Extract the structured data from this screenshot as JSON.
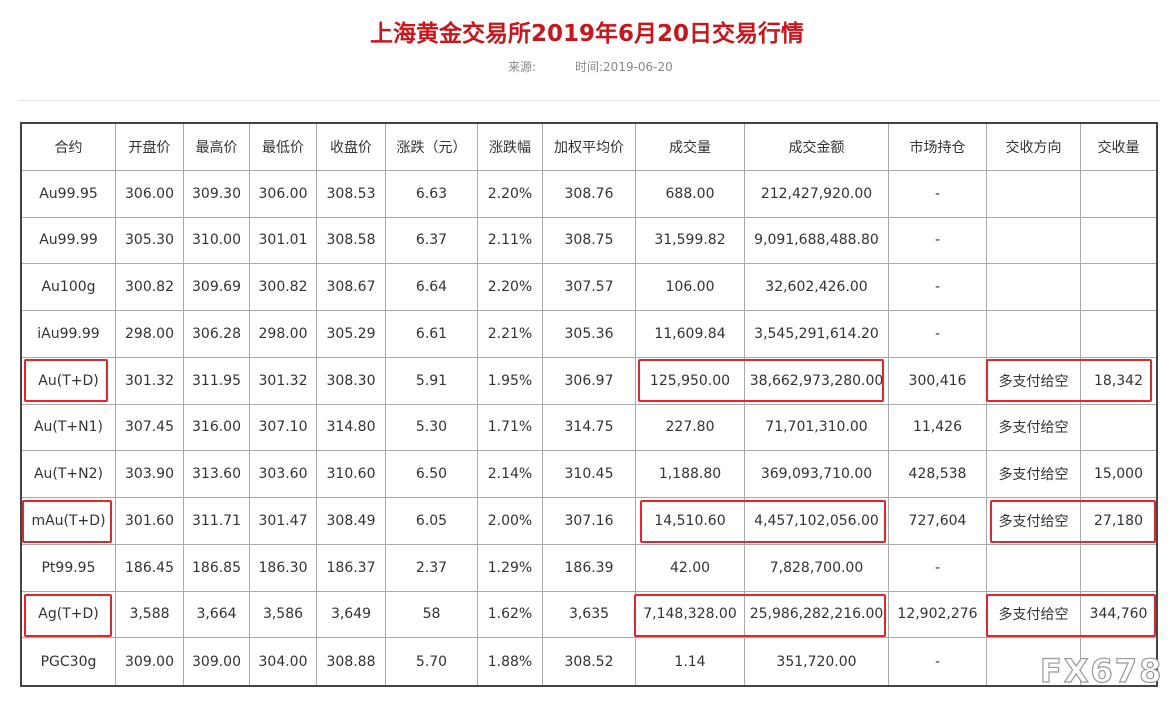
{
  "header": {
    "title": "上海黄金交易所2019年6月20日交易行情",
    "source_label": "来源:",
    "time": "时间:2019-06-20"
  },
  "table": {
    "columns": [
      "合约",
      "开盘价",
      "最高价",
      "最低价",
      "收盘价",
      "涨跌（元）",
      "涨跌幅",
      "加权平均价",
      "成交量",
      "成交金额",
      "市场持仓",
      "交收方向",
      "交收量"
    ],
    "rows": [
      [
        "Au99.95",
        "306.00",
        "309.30",
        "306.00",
        "308.53",
        "6.63",
        "2.20%",
        "308.76",
        "688.00",
        "212,427,920.00",
        "-",
        null,
        null
      ],
      [
        "Au99.99",
        "305.30",
        "310.00",
        "301.01",
        "308.58",
        "6.37",
        "2.11%",
        "308.75",
        "31,599.82",
        "9,091,688,488.80",
        "-",
        null,
        null
      ],
      [
        "Au100g",
        "300.82",
        "309.69",
        "300.82",
        "308.67",
        "6.64",
        "2.20%",
        "307.57",
        "106.00",
        "32,602,426.00",
        "-",
        null,
        null
      ],
      [
        "iAu99.99",
        "298.00",
        "306.28",
        "298.00",
        "305.29",
        "6.61",
        "2.21%",
        "305.36",
        "11,609.84",
        "3,545,291,614.20",
        "-",
        null,
        null
      ],
      [
        "Au(T+D)",
        "301.32",
        "311.95",
        "301.32",
        "308.30",
        "5.91",
        "1.95%",
        "306.97",
        "125,950.00",
        "38,662,973,280.00",
        "300,416",
        "多支付给空",
        "18,342"
      ],
      [
        "Au(T+N1)",
        "307.45",
        "316.00",
        "307.10",
        "314.80",
        "5.30",
        "1.71%",
        "314.75",
        "227.80",
        "71,701,310.00",
        "11,426",
        "多支付给空",
        null
      ],
      [
        "Au(T+N2)",
        "303.90",
        "313.60",
        "303.60",
        "310.60",
        "6.50",
        "2.14%",
        "310.45",
        "1,188.80",
        "369,093,710.00",
        "428,538",
        "多支付给空",
        "15,000"
      ],
      [
        "mAu(T+D)",
        "301.60",
        "311.71",
        "301.47",
        "308.49",
        "6.05",
        "2.00%",
        "307.16",
        "14,510.60",
        "4,457,102,056.00",
        "727,604",
        "多支付给空",
        "27,180"
      ],
      [
        "Pt99.95",
        "186.45",
        "186.85",
        "186.30",
        "186.37",
        "2.37",
        "1.29%",
        "186.39",
        "42.00",
        "7,828,700.00",
        "-",
        null,
        null
      ],
      [
        "Ag(T+D)",
        "3,588",
        "3,664",
        "3,586",
        "3,649",
        "58",
        "1.62%",
        "3,635",
        "7,148,328.00",
        "25,986,282,216.00",
        "12,902,276",
        "多支付给空",
        "344,760"
      ],
      [
        "PGC30g",
        "309.00",
        "309.00",
        "304.00",
        "308.88",
        "5.70",
        "1.88%",
        "308.52",
        "1.14",
        "351,720.00",
        "-",
        null,
        null
      ]
    ]
  },
  "watermark": "FX678"
}
